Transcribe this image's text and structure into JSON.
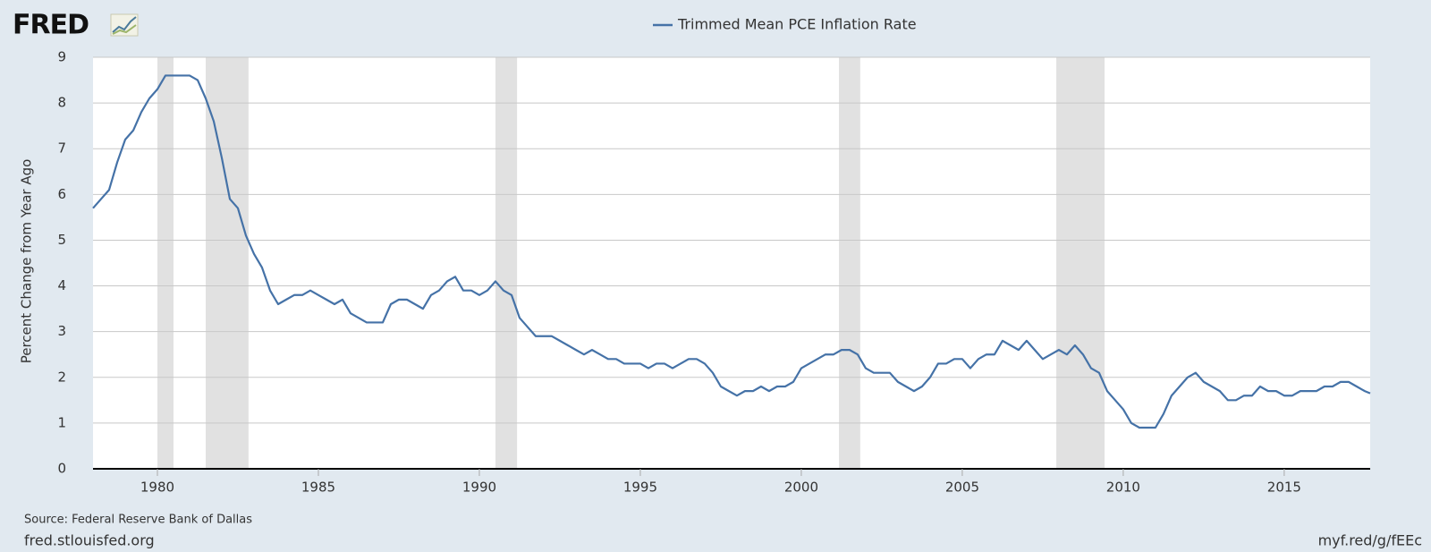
{
  "chart_data": {
    "type": "line",
    "logo": "FRED",
    "ylabel": "Percent Change from Year Ago",
    "source": "Source: Federal Reserve Bank of Dallas",
    "site": "fred.stlouisfed.org",
    "short_url": "myf.red/g/fEEc",
    "xlim": [
      1978,
      2017.67
    ],
    "xticks": [
      1980,
      1985,
      1990,
      1995,
      2000,
      2005,
      2010,
      2015
    ],
    "ylim": [
      0,
      9
    ],
    "yticks": [
      0,
      1,
      2,
      3,
      4,
      5,
      6,
      7,
      8,
      9
    ],
    "grid": true,
    "legend": "top",
    "recessions": [
      [
        1980.0,
        1980.5
      ],
      [
        1981.5,
        1982.83
      ],
      [
        1990.5,
        1991.17
      ],
      [
        2001.17,
        2001.83
      ],
      [
        2007.92,
        2009.42
      ]
    ],
    "x": [
      1978.0,
      1978.25,
      1978.5,
      1978.75,
      1979.0,
      1979.25,
      1979.5,
      1979.75,
      1980.0,
      1980.25,
      1980.5,
      1980.75,
      1981.0,
      1981.25,
      1981.5,
      1981.75,
      1982.0,
      1982.25,
      1982.5,
      1982.75,
      1983.0,
      1983.25,
      1983.5,
      1983.75,
      1984.0,
      1984.25,
      1984.5,
      1984.75,
      1985.0,
      1985.25,
      1985.5,
      1985.75,
      1986.0,
      1986.25,
      1986.5,
      1986.75,
      1987.0,
      1987.25,
      1987.5,
      1987.75,
      1988.0,
      1988.25,
      1988.5,
      1988.75,
      1989.0,
      1989.25,
      1989.5,
      1989.75,
      1990.0,
      1990.25,
      1990.5,
      1990.75,
      1991.0,
      1991.25,
      1991.5,
      1991.75,
      1992.0,
      1992.25,
      1992.5,
      1992.75,
      1993.0,
      1993.25,
      1993.5,
      1993.75,
      1994.0,
      1994.25,
      1994.5,
      1994.75,
      1995.0,
      1995.25,
      1995.5,
      1995.75,
      1996.0,
      1996.25,
      1996.5,
      1996.75,
      1997.0,
      1997.25,
      1997.5,
      1997.75,
      1998.0,
      1998.25,
      1998.5,
      1998.75,
      1999.0,
      1999.25,
      1999.5,
      1999.75,
      2000.0,
      2000.25,
      2000.5,
      2000.75,
      2001.0,
      2001.25,
      2001.5,
      2001.75,
      2002.0,
      2002.25,
      2002.5,
      2002.75,
      2003.0,
      2003.25,
      2003.5,
      2003.75,
      2004.0,
      2004.25,
      2004.5,
      2004.75,
      2005.0,
      2005.25,
      2005.5,
      2005.75,
      2006.0,
      2006.25,
      2006.5,
      2006.75,
      2007.0,
      2007.25,
      2007.5,
      2007.75,
      2008.0,
      2008.25,
      2008.5,
      2008.75,
      2009.0,
      2009.25,
      2009.5,
      2009.75,
      2010.0,
      2010.25,
      2010.5,
      2010.75,
      2011.0,
      2011.25,
      2011.5,
      2011.75,
      2012.0,
      2012.25,
      2012.5,
      2012.75,
      2013.0,
      2013.25,
      2013.5,
      2013.75,
      2014.0,
      2014.25,
      2014.5,
      2014.75,
      2015.0,
      2015.25,
      2015.5,
      2015.75,
      2016.0,
      2016.25,
      2016.5,
      2016.75,
      2017.0,
      2017.25,
      2017.5,
      2017.67
    ],
    "series": [
      {
        "name": "Trimmed Mean PCE Inflation Rate",
        "color": "#4572a7",
        "values": [
          5.7,
          5.9,
          6.1,
          6.7,
          7.2,
          7.4,
          7.8,
          8.1,
          8.3,
          8.6,
          8.6,
          8.6,
          8.6,
          8.5,
          8.1,
          7.6,
          6.8,
          5.9,
          5.7,
          5.1,
          4.7,
          4.4,
          3.9,
          3.6,
          3.7,
          3.8,
          3.8,
          3.9,
          3.8,
          3.7,
          3.6,
          3.7,
          3.4,
          3.3,
          3.2,
          3.2,
          3.2,
          3.6,
          3.7,
          3.7,
          3.6,
          3.5,
          3.8,
          3.9,
          4.1,
          4.2,
          3.9,
          3.9,
          3.8,
          3.9,
          4.1,
          3.9,
          3.8,
          3.3,
          3.1,
          2.9,
          2.9,
          2.9,
          2.8,
          2.7,
          2.6,
          2.5,
          2.6,
          2.5,
          2.4,
          2.4,
          2.3,
          2.3,
          2.3,
          2.2,
          2.3,
          2.3,
          2.2,
          2.3,
          2.4,
          2.4,
          2.3,
          2.1,
          1.8,
          1.7,
          1.6,
          1.7,
          1.7,
          1.8,
          1.7,
          1.8,
          1.8,
          1.9,
          2.2,
          2.3,
          2.4,
          2.5,
          2.5,
          2.6,
          2.6,
          2.5,
          2.2,
          2.1,
          2.1,
          2.1,
          1.9,
          1.8,
          1.7,
          1.8,
          2.0,
          2.3,
          2.3,
          2.4,
          2.4,
          2.2,
          2.4,
          2.5,
          2.5,
          2.8,
          2.7,
          2.6,
          2.8,
          2.6,
          2.4,
          2.5,
          2.6,
          2.5,
          2.7,
          2.5,
          2.2,
          2.1,
          1.7,
          1.5,
          1.3,
          1.0,
          0.9,
          0.9,
          0.9,
          1.2,
          1.6,
          1.8,
          2.0,
          2.1,
          1.9,
          1.8,
          1.7,
          1.5,
          1.5,
          1.6,
          1.6,
          1.8,
          1.7,
          1.7,
          1.6,
          1.6,
          1.7,
          1.7,
          1.7,
          1.8,
          1.8,
          1.9,
          1.9,
          1.8,
          1.7,
          1.65
        ]
      }
    ]
  }
}
